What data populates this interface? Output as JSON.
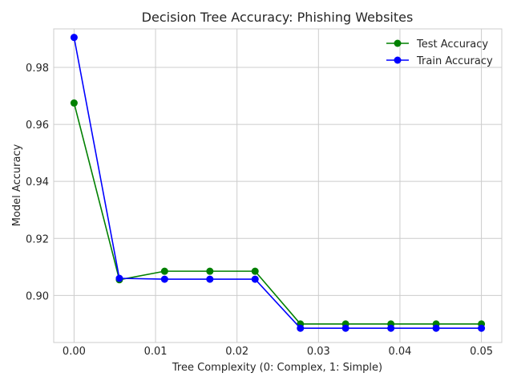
{
  "chart_data": {
    "type": "line",
    "title": "Decision Tree Accuracy: Phishing Websites",
    "xlabel": "Tree Complexity (0: Complex, 1: Simple)",
    "ylabel": "Model Accuracy",
    "xlim": [
      -0.0025,
      0.0525
    ],
    "ylim": [
      0.8835,
      0.9935
    ],
    "xticks": [
      0.0,
      0.01,
      0.02,
      0.03,
      0.04,
      0.05
    ],
    "xtick_labels": [
      "0.00",
      "0.01",
      "0.02",
      "0.03",
      "0.04",
      "0.05"
    ],
    "yticks": [
      0.9,
      0.92,
      0.94,
      0.96,
      0.98
    ],
    "ytick_labels": [
      "0.90",
      "0.92",
      "0.94",
      "0.96",
      "0.98"
    ],
    "grid": true,
    "legend_position": "top-right",
    "x": [
      0.0,
      0.00556,
      0.01111,
      0.01667,
      0.02222,
      0.02778,
      0.03333,
      0.03889,
      0.04444,
      0.05
    ],
    "series": [
      {
        "name": "Test Accuracy",
        "color": "#008000",
        "values": [
          0.9675,
          0.9055,
          0.9085,
          0.9085,
          0.9085,
          0.89,
          0.89,
          0.89,
          0.89,
          0.89
        ]
      },
      {
        "name": "Train Accuracy",
        "color": "#0000ff",
        "values": [
          0.9905,
          0.906,
          0.9057,
          0.9057,
          0.9057,
          0.8885,
          0.8885,
          0.8885,
          0.8885,
          0.8885
        ]
      }
    ]
  }
}
